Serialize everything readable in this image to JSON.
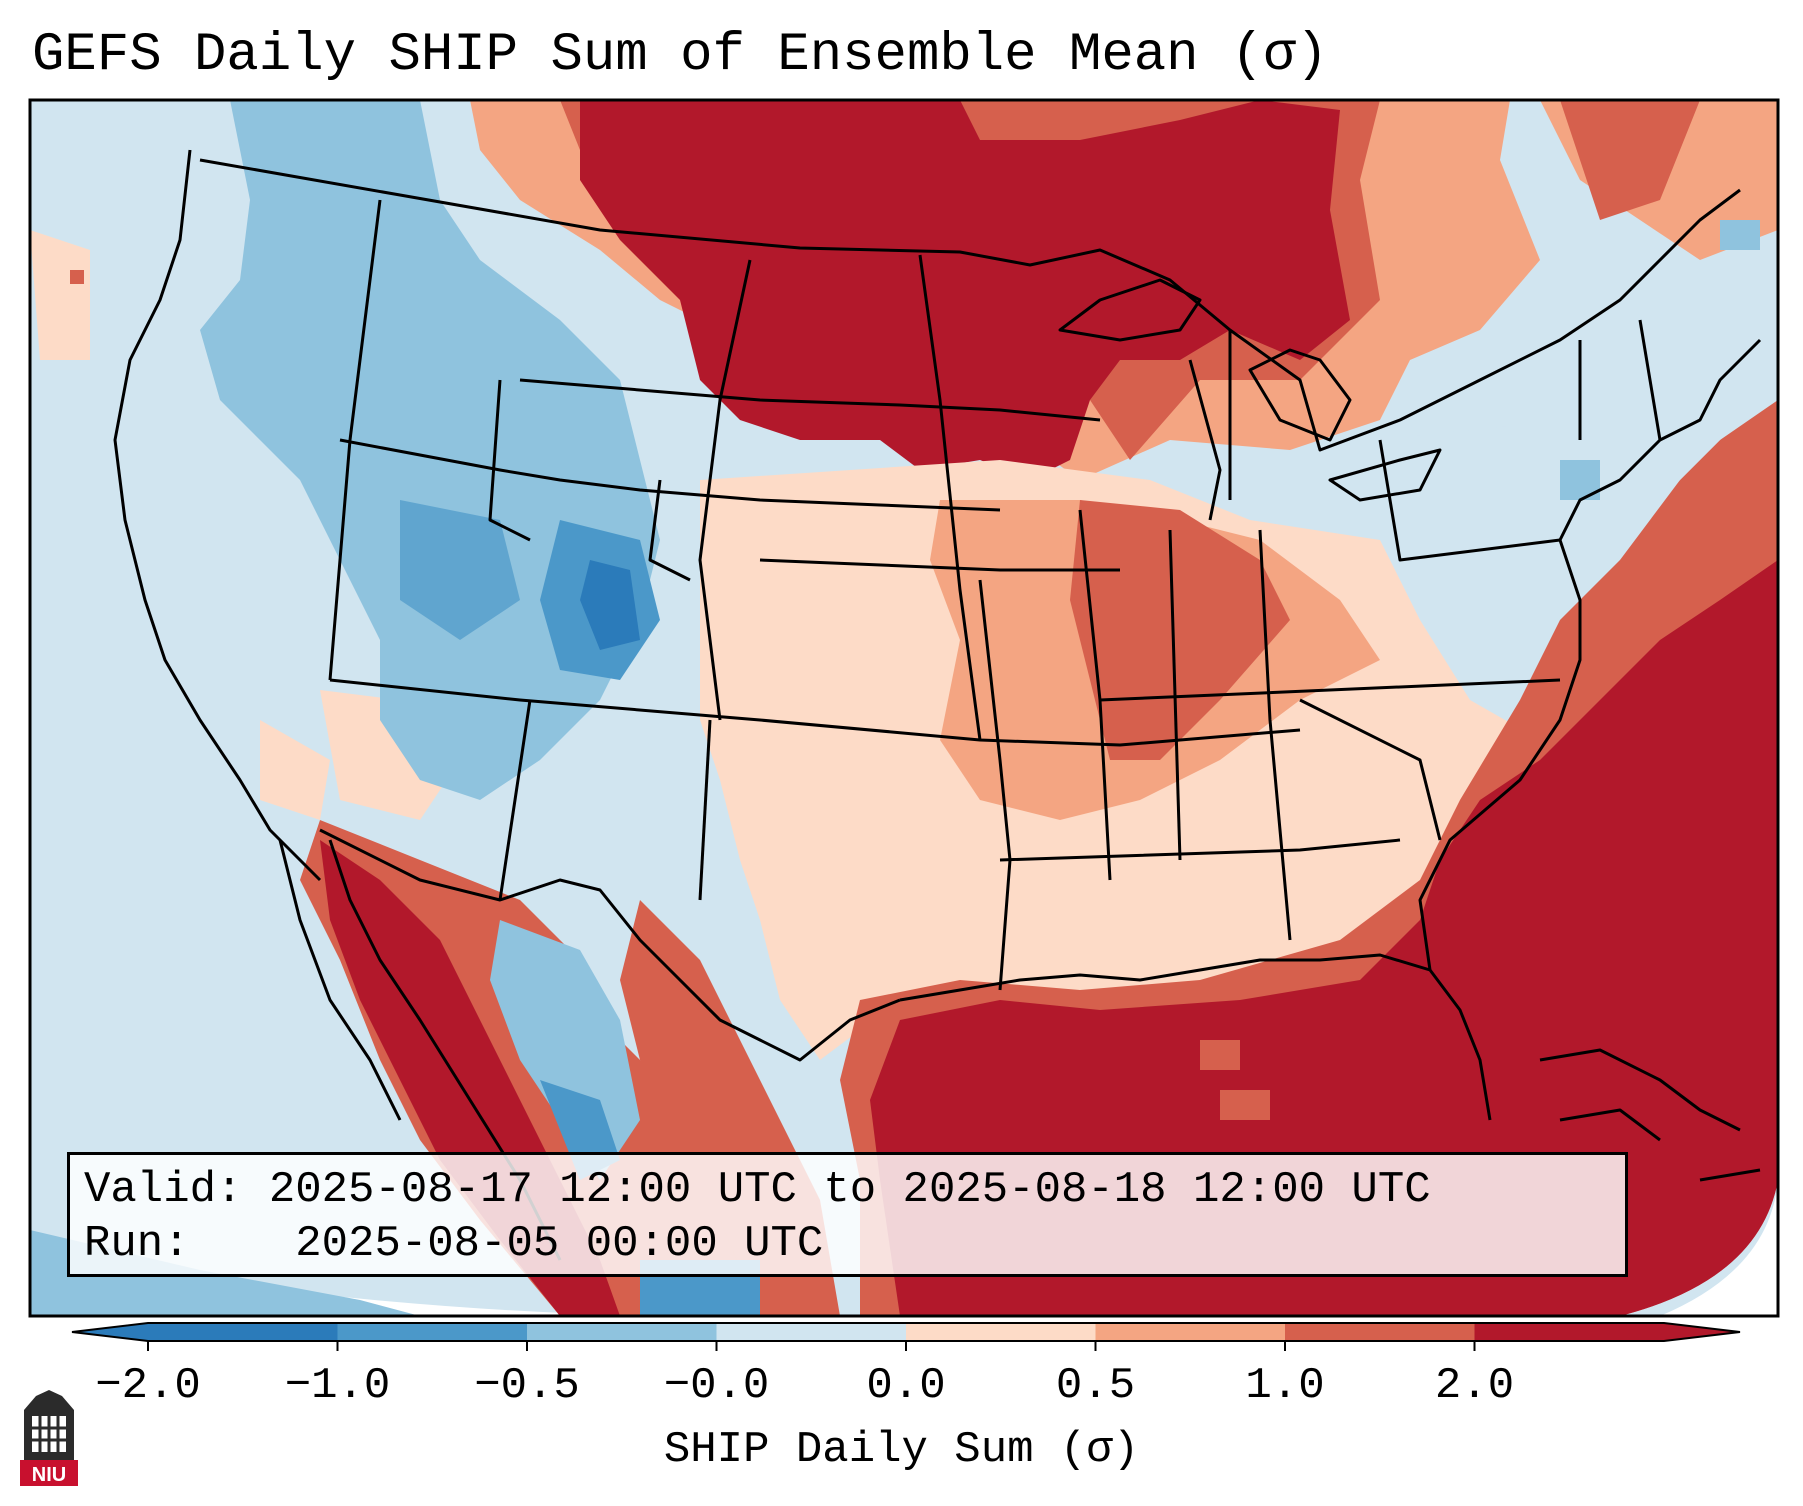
{
  "title": "GEFS Daily SHIP Sum of Ensemble Mean (σ)",
  "info": {
    "valid_label": "Valid:",
    "valid_value": "2025-08-17 12:00 UTC to 2025-08-18 12:00 UTC",
    "run_label": "Run:",
    "run_value": "2025-08-05 00:00 UTC"
  },
  "colorbar": {
    "label": "SHIP Daily Sum (σ)",
    "ticks": [
      "−2.0",
      "−1.0",
      "−0.5",
      "−0.0",
      "0.0",
      "0.5",
      "1.0",
      "2.0"
    ],
    "colors": [
      "#2b7bba",
      "#4b98c9",
      "#8fc3de",
      "#d1e5f0",
      "#fddbc7",
      "#f4a582",
      "#d6604d",
      "#b2182b"
    ],
    "extend": "both"
  },
  "logo": {
    "text": "NIU"
  }
}
